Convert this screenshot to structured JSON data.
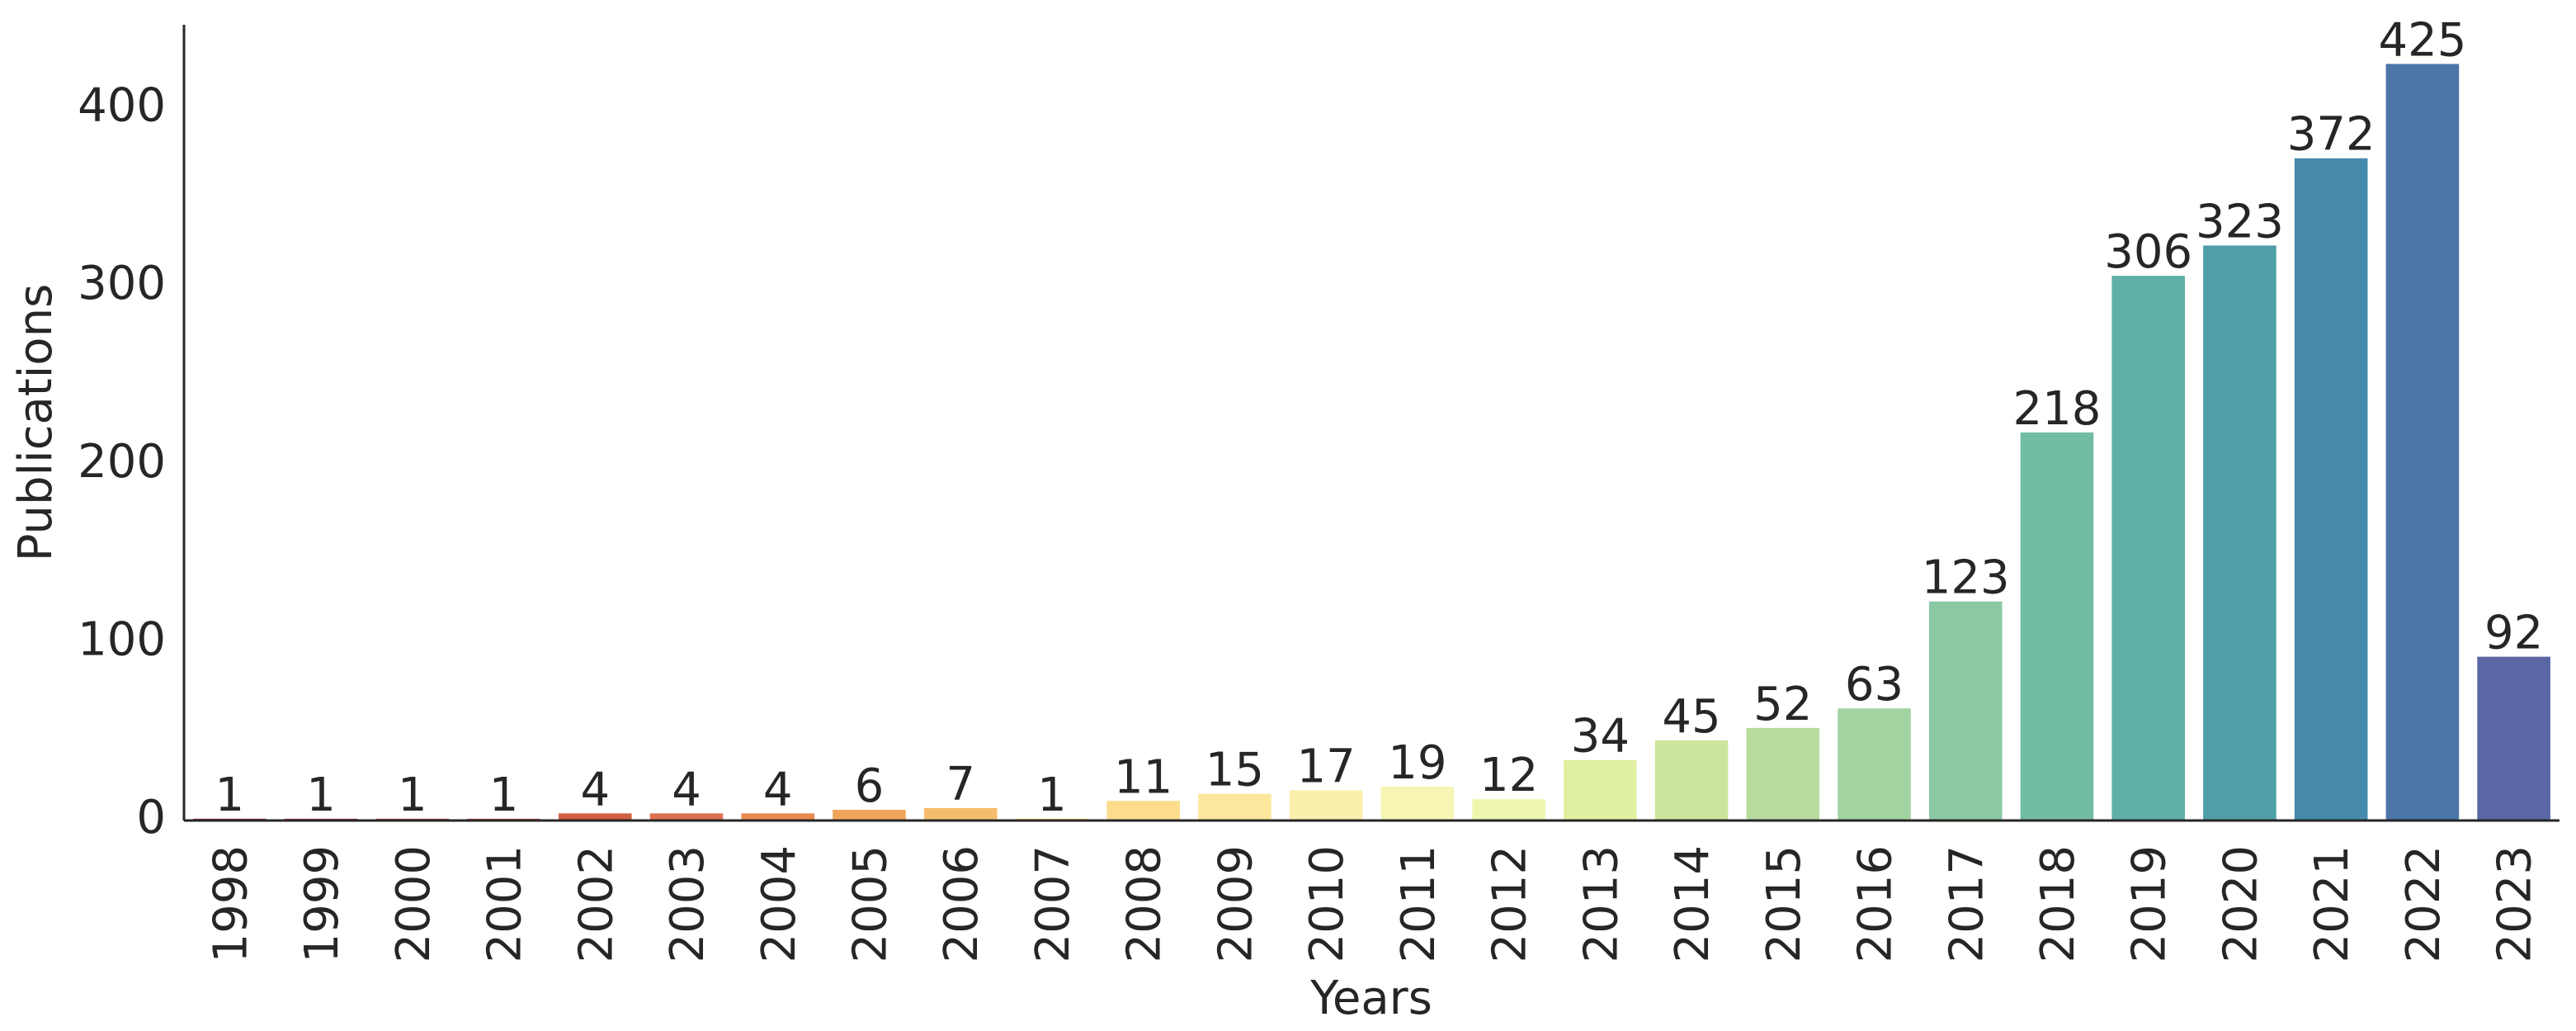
{
  "chart_data": {
    "type": "bar",
    "x_label": "Years",
    "y_label": "Publications",
    "categories": [
      "1998",
      "1999",
      "2000",
      "2001",
      "2002",
      "2003",
      "2004",
      "2005",
      "2006",
      "2007",
      "2008",
      "2009",
      "2010",
      "2011",
      "2012",
      "2013",
      "2014",
      "2015",
      "2016",
      "2017",
      "2018",
      "2019",
      "2020",
      "2021",
      "2022",
      "2023"
    ],
    "values": [
      1,
      1,
      1,
      1,
      4,
      4,
      4,
      6,
      7,
      1,
      11,
      15,
      17,
      19,
      12,
      34,
      45,
      52,
      63,
      123,
      218,
      306,
      323,
      372,
      425,
      92
    ],
    "colors": [
      "#9e2a4a",
      "#b03548",
      "#c04448",
      "#cd5247",
      "#d0603f",
      "#dd7050",
      "#e8894f",
      "#f0a55a",
      "#f5bd6b",
      "#f9cf7d",
      "#fbdd8d",
      "#fbe89d",
      "#faefac",
      "#f7f5b4",
      "#eef6b0",
      "#e0f0a2",
      "#cce59c",
      "#b8dc9f",
      "#a2d4a2",
      "#8ac9a4",
      "#72bca6",
      "#5fb0a7",
      "#4f9fa8",
      "#458aab",
      "#4c75a8",
      "#5b66a4"
    ],
    "ylim": [
      0,
      447
    ],
    "yticks": [
      0,
      100,
      200,
      300,
      400
    ],
    "grid": false
  }
}
